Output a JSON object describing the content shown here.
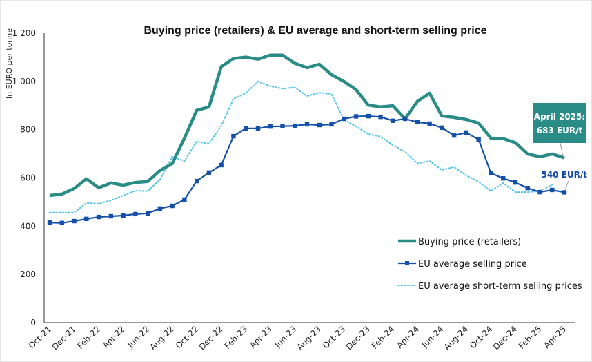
{
  "chart_data": {
    "type": "line",
    "title": "Buying price (retailers) & EU average and short-term selling price",
    "xlabel": "",
    "ylabel": "In EURO per tonne",
    "ylim": [
      0,
      1200
    ],
    "yticks": [
      0,
      200,
      400,
      600,
      800,
      1000,
      1200
    ],
    "ytick_labels": [
      "0",
      "200",
      "400",
      "600",
      "800",
      "1 000",
      "1 200"
    ],
    "grid": false,
    "legend_position": "bottom-right",
    "x": [
      "Oct-21",
      "Nov-21",
      "Dec-21",
      "Jan-22",
      "Feb-22",
      "Mar-22",
      "Apr-22",
      "May-22",
      "Jun-22",
      "Jul-22",
      "Aug-22",
      "Sep-22",
      "Oct-22",
      "Nov-22",
      "Dec-22",
      "Jan-23",
      "Feb-23",
      "Mar-23",
      "Apr-23",
      "May-23",
      "Jun-23",
      "Jul-23",
      "Aug-23",
      "Sep-23",
      "Oct-23",
      "Nov-23",
      "Dec-23",
      "Jan-24",
      "Feb-24",
      "Mar-24",
      "Apr-24",
      "May-24",
      "Jun-24",
      "Jul-24",
      "Aug-24",
      "Sep-24",
      "Oct-24",
      "Nov-24",
      "Dec-24",
      "Jan-25",
      "Feb-25",
      "Mar-25",
      "Apr-25"
    ],
    "xtick_labels": [
      "Oct-21",
      "Dec-21",
      "Feb-22",
      "Apr-22",
      "Jun-22",
      "Aug-22",
      "Oct-22",
      "Dec-22",
      "Feb-23",
      "Apr-23",
      "Jun-23",
      "Aug-23",
      "Oct-23",
      "Dec-23",
      "Feb-24",
      "Apr-24",
      "Jun-24",
      "Aug-24",
      "Oct-24",
      "Dec-24",
      "Feb-25",
      "Apr-25"
    ],
    "series": [
      {
        "name": "Buying price (retailers)",
        "style": "solid-thick",
        "color": "#2a8c87",
        "values": [
          527,
          533,
          556,
          596,
          559,
          579,
          570,
          581,
          585,
          631,
          659,
          765,
          880,
          894,
          1061,
          1095,
          1101,
          1092,
          1109,
          1109,
          1075,
          1057,
          1071,
          1028,
          1000,
          966,
          902,
          894,
          899,
          845,
          917,
          951,
          857,
          851,
          842,
          827,
          765,
          763,
          746,
          699,
          688,
          699,
          683
        ]
      },
      {
        "name": "EU average selling price",
        "style": "solid-markers",
        "color": "#1450a8",
        "values": [
          415,
          413,
          421,
          430,
          438,
          441,
          444,
          450,
          453,
          473,
          484,
          510,
          587,
          622,
          653,
          773,
          805,
          805,
          813,
          814,
          816,
          822,
          819,
          822,
          845,
          855,
          856,
          853,
          837,
          845,
          831,
          825,
          808,
          776,
          788,
          759,
          620,
          598,
          581,
          558,
          541,
          550,
          540
        ]
      },
      {
        "name": "EU average short-term selling prices",
        "style": "dotted",
        "color": "#4fc3e8",
        "values": [
          456,
          456,
          456,
          496,
          493,
          507,
          527,
          547,
          545,
          593,
          688,
          670,
          751,
          742,
          816,
          928,
          951,
          1000,
          980,
          970,
          975,
          939,
          953,
          948,
          841,
          813,
          782,
          771,
          736,
          708,
          660,
          670,
          633,
          645,
          610,
          584,
          545,
          579,
          541,
          541,
          545,
          572,
          null
        ]
      }
    ],
    "annotations": [
      {
        "text_line1": "April 2025:",
        "text_line2": "683 EUR/t",
        "series": 0,
        "point": "Apr-25",
        "box_color": "#2a8c87"
      },
      {
        "text": "540 EUR/t",
        "series": 1,
        "point": "Apr-25",
        "text_color": "#1347a6"
      }
    ]
  }
}
